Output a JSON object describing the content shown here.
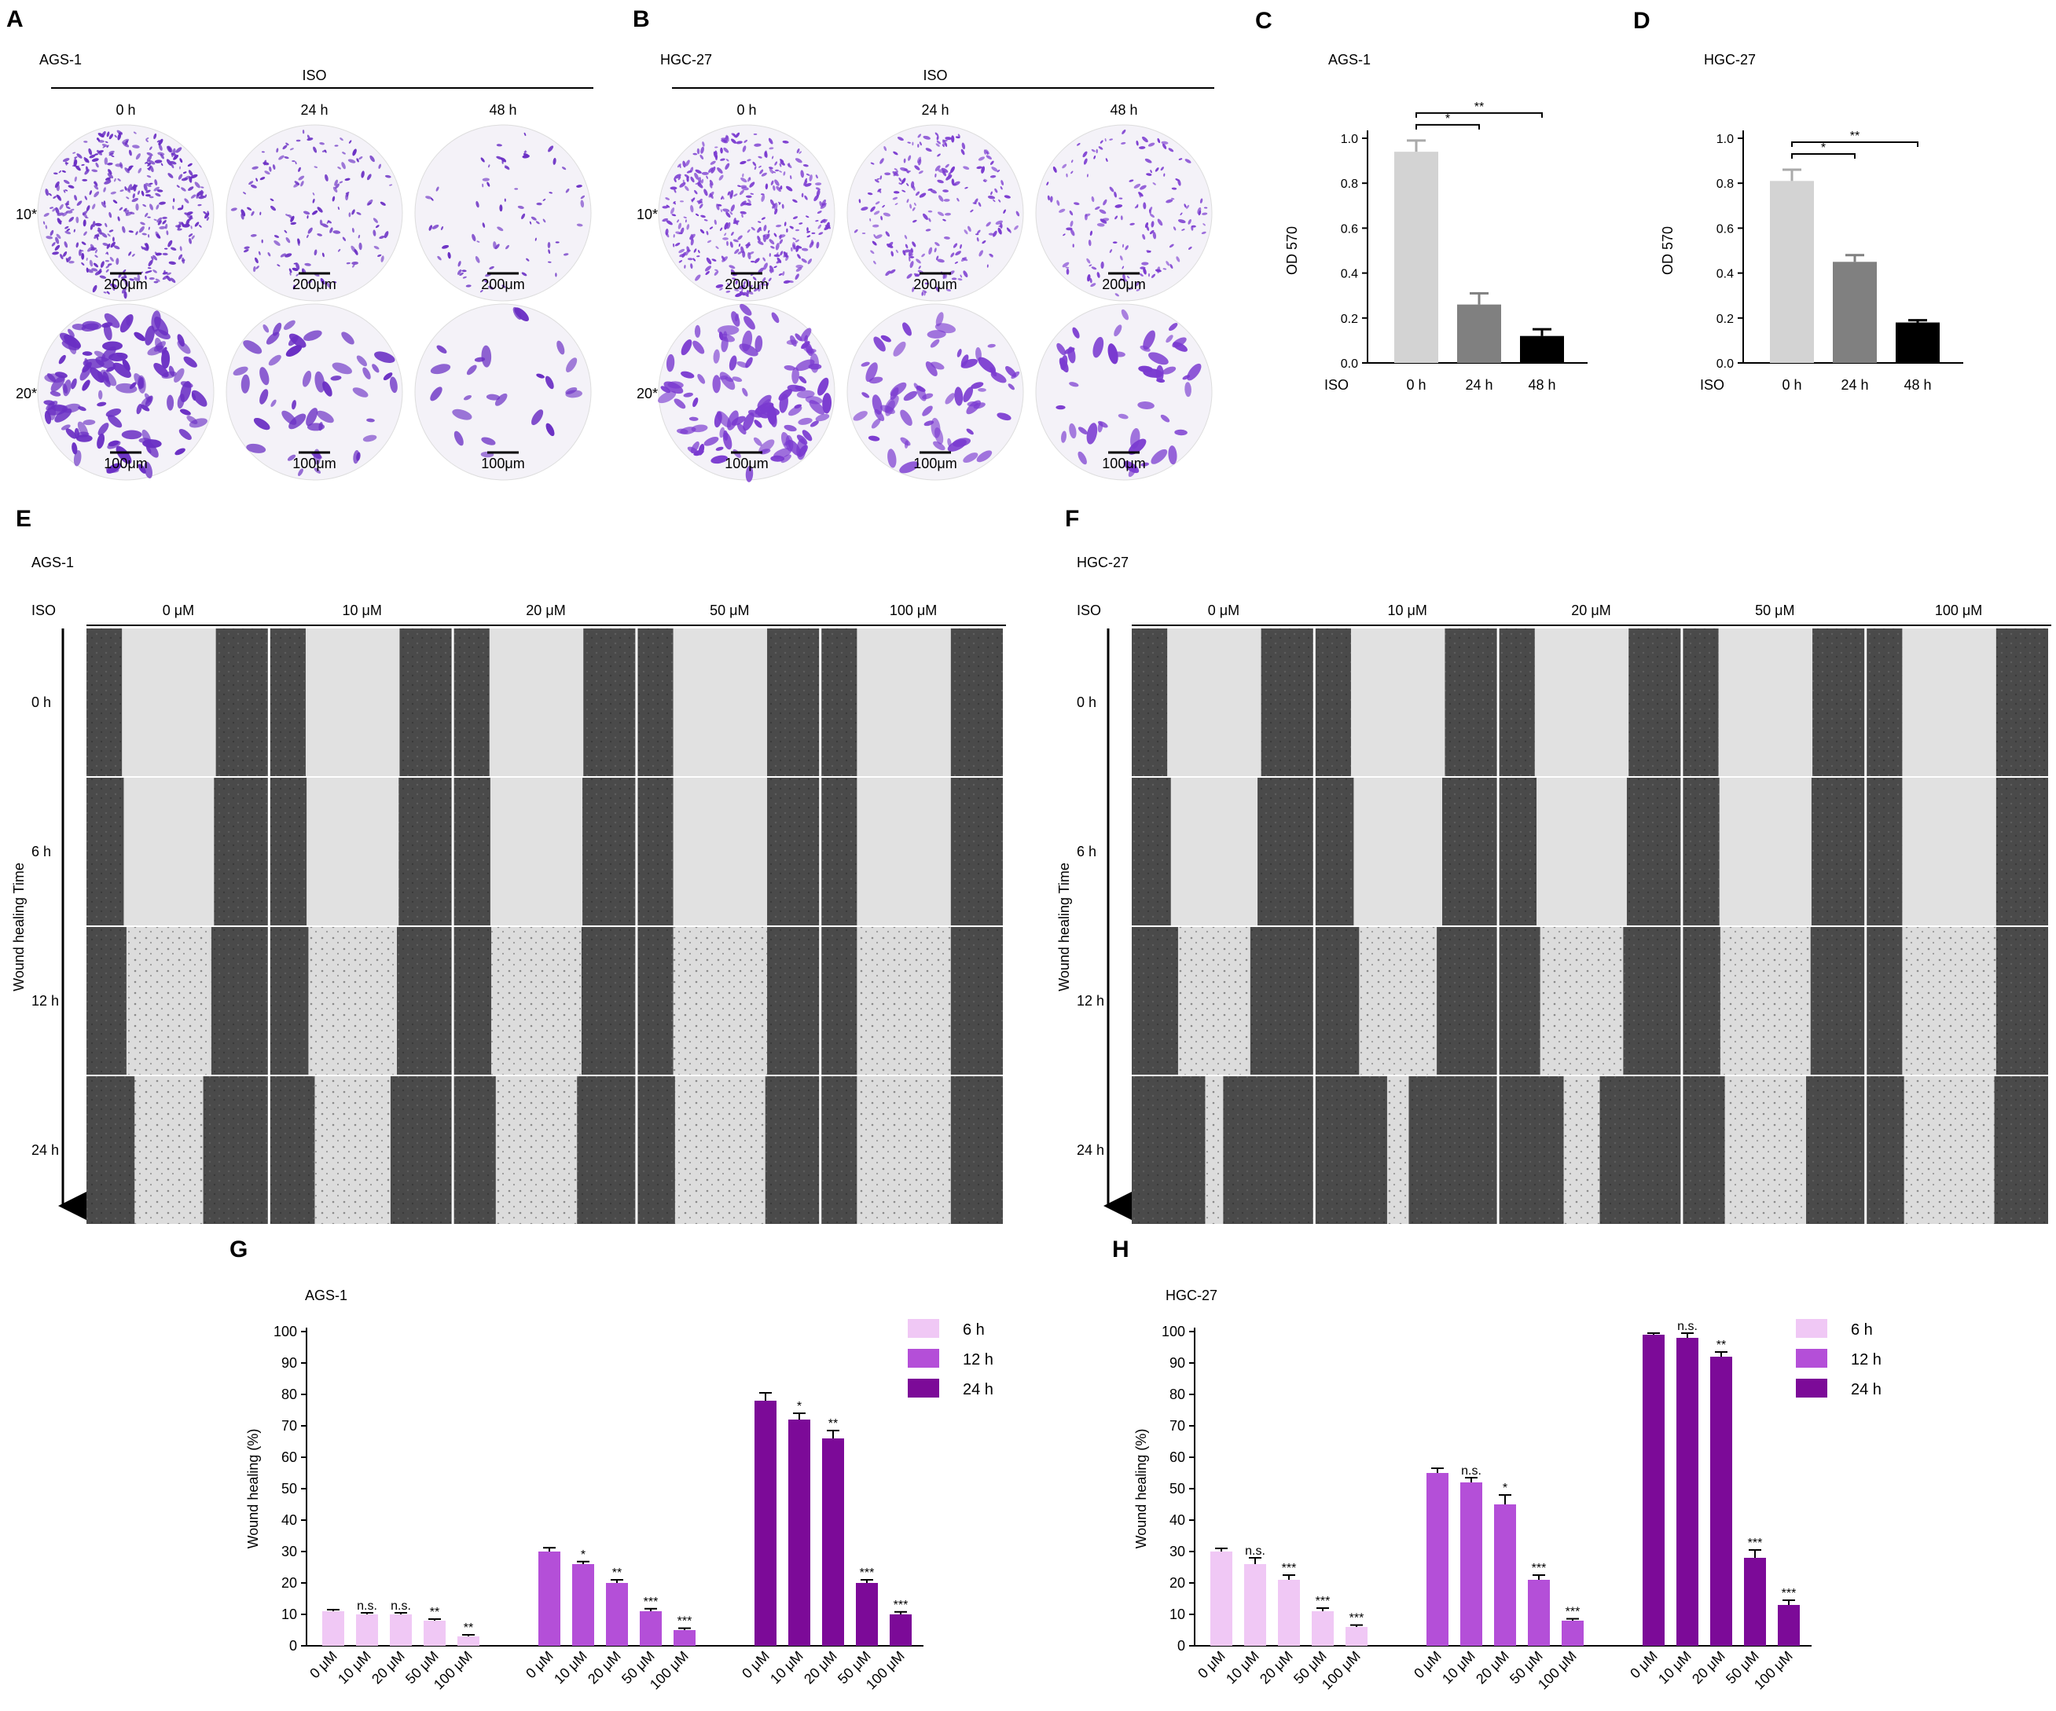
{
  "panels": {
    "A": "A",
    "B": "B",
    "C": "C",
    "D": "D",
    "E": "E",
    "F": "F",
    "G": "G",
    "H": "H"
  },
  "transwell": [
    {
      "cell": "AGS-1",
      "iso": "ISO",
      "times": [
        "0 h",
        "24 h",
        "48 h"
      ],
      "rows": [
        {
          "label": "10*",
          "scale": "200μm"
        },
        {
          "label": "20*",
          "scale": "100μm"
        }
      ],
      "density": [
        0.9,
        0.35,
        0.18
      ],
      "color": "#6a2fc4"
    },
    {
      "cell": "HGC-27",
      "iso": "ISO",
      "times": [
        "0 h",
        "24 h",
        "48 h"
      ],
      "rows": [
        {
          "label": "10*",
          "scale": "200μm"
        },
        {
          "label": "20*",
          "scale": "100μm"
        }
      ],
      "density": [
        0.85,
        0.5,
        0.35
      ],
      "color": "#7a3ad0"
    }
  ],
  "chart_data": [
    {
      "type": "bar",
      "panel": "C",
      "title": "AGS-1",
      "ylabel": "OD 570",
      "xlabel_prefix": "ISO",
      "categories": [
        "0 h",
        "24 h",
        "48 h"
      ],
      "values": [
        0.94,
        0.26,
        0.12
      ],
      "errors": [
        0.05,
        0.05,
        0.03
      ],
      "colors": [
        "#d3d3d3",
        "#808080",
        "#000000"
      ],
      "ylim": [
        0,
        1.0
      ],
      "yticks": [
        "0.0",
        "0.2",
        "0.4",
        "0.6",
        "0.8",
        "1.0"
      ],
      "significance": [
        "*",
        "**"
      ]
    },
    {
      "type": "bar",
      "panel": "D",
      "title": "HGC-27",
      "ylabel": "OD 570",
      "xlabel_prefix": "ISO",
      "categories": [
        "0 h",
        "24 h",
        "48 h"
      ],
      "values": [
        0.81,
        0.45,
        0.18
      ],
      "errors": [
        0.05,
        0.03,
        0.01
      ],
      "colors": [
        "#d3d3d3",
        "#808080",
        "#000000"
      ],
      "ylim": [
        0,
        1.0
      ],
      "yticks": [
        "0.0",
        "0.2",
        "0.4",
        "0.6",
        "0.8",
        "1.0"
      ],
      "significance": [
        "*",
        "**"
      ]
    },
    {
      "type": "bar",
      "panel": "G",
      "title": "AGS-1",
      "ylabel": "Wound healing (%)",
      "categories": [
        "0 μM",
        "10 μM",
        "20 μM",
        "50 μM",
        "100 μM"
      ],
      "ylim": [
        0,
        100
      ],
      "yticks": [
        "0",
        "10",
        "20",
        "30",
        "40",
        "50",
        "60",
        "70",
        "80",
        "90",
        "100"
      ],
      "series": [
        {
          "name": "6 h",
          "color": "#f0c8f5",
          "values": [
            11,
            10,
            10,
            8,
            3
          ],
          "errors": [
            0.5,
            0.5,
            0.5,
            0.5,
            0.5
          ],
          "sig": [
            "",
            "n.s.",
            "n.s.",
            "**",
            "**"
          ]
        },
        {
          "name": "12 h",
          "color": "#b44fd8",
          "values": [
            30,
            26,
            20,
            11,
            5
          ],
          "errors": [
            1.2,
            0.8,
            1.0,
            0.8,
            0.6
          ],
          "sig": [
            "",
            "*",
            "**",
            "***",
            "***"
          ]
        },
        {
          "name": "24 h",
          "color": "#7c0a98",
          "values": [
            78,
            72,
            66,
            20,
            10
          ],
          "errors": [
            2.5,
            2.0,
            2.5,
            1.0,
            0.8
          ],
          "sig": [
            "",
            "*",
            "**",
            "***",
            "***"
          ]
        }
      ]
    },
    {
      "type": "bar",
      "panel": "H",
      "title": "HGC-27",
      "ylabel": "Wound healing (%)",
      "categories": [
        "0 μM",
        "10 μM",
        "20 μM",
        "50 μM",
        "100 μM"
      ],
      "ylim": [
        0,
        100
      ],
      "yticks": [
        "0",
        "10",
        "20",
        "30",
        "40",
        "50",
        "60",
        "70",
        "80",
        "90",
        "100"
      ],
      "series": [
        {
          "name": "6 h",
          "color": "#f0c8f5",
          "values": [
            30,
            26,
            21,
            11,
            6
          ],
          "errors": [
            1.0,
            2.0,
            1.5,
            1.0,
            0.6
          ],
          "sig": [
            "",
            "n.s.",
            "***",
            "***",
            "***"
          ]
        },
        {
          "name": "12 h",
          "color": "#b44fd8",
          "values": [
            55,
            52,
            45,
            21,
            8
          ],
          "errors": [
            1.5,
            1.5,
            3.0,
            1.5,
            0.6
          ],
          "sig": [
            "",
            "n.s.",
            "*",
            "***",
            "***"
          ]
        },
        {
          "name": "24 h",
          "color": "#7c0a98",
          "values": [
            99,
            98,
            92,
            28,
            13
          ],
          "errors": [
            0.5,
            1.5,
            1.5,
            2.5,
            1.5
          ],
          "sig": [
            "",
            "n.s.",
            "**",
            "***",
            "***"
          ]
        }
      ]
    }
  ],
  "wound": [
    {
      "cell": "AGS-1",
      "iso": "ISO",
      "concs": [
        "0 μM",
        "10 μM",
        "20 μM",
        "50 μM",
        "100 μM"
      ],
      "times": [
        "0 h",
        "6 h",
        "12 h",
        "24 h"
      ],
      "axis_label": "Wound healing Time",
      "gap": [
        [
          0.52,
          0.52,
          0.52,
          0.52,
          0.52
        ],
        [
          0.5,
          0.51,
          0.51,
          0.52,
          0.52
        ],
        [
          0.47,
          0.49,
          0.5,
          0.52,
          0.52
        ],
        [
          0.38,
          0.42,
          0.45,
          0.5,
          0.52
        ]
      ]
    },
    {
      "cell": "HGC-27",
      "iso": "ISO",
      "concs": [
        "0 μM",
        "10 μM",
        "20 μM",
        "50 μM",
        "100 μM"
      ],
      "times": [
        "0 h",
        "6 h",
        "12 h",
        "24 h"
      ],
      "axis_label": "Wound healing Time",
      "gap": [
        [
          0.52,
          0.52,
          0.52,
          0.52,
          0.52
        ],
        [
          0.48,
          0.49,
          0.5,
          0.51,
          0.52
        ],
        [
          0.4,
          0.43,
          0.46,
          0.5,
          0.52
        ],
        [
          0.1,
          0.12,
          0.2,
          0.45,
          0.5
        ]
      ]
    }
  ]
}
